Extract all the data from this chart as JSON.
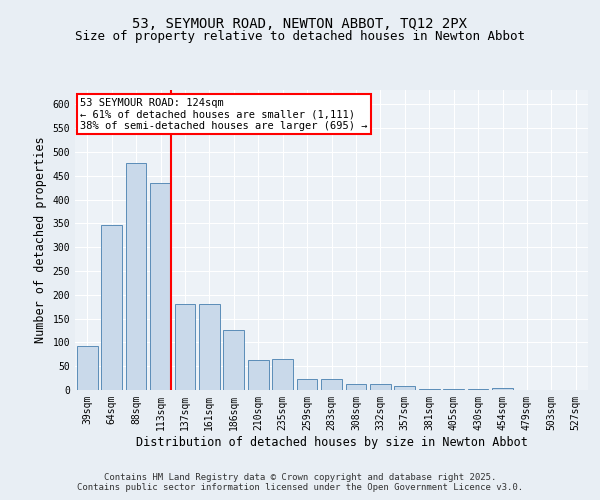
{
  "title_line1": "53, SEYMOUR ROAD, NEWTON ABBOT, TQ12 2PX",
  "title_line2": "Size of property relative to detached houses in Newton Abbot",
  "xlabel": "Distribution of detached houses by size in Newton Abbot",
  "ylabel": "Number of detached properties",
  "categories": [
    "39sqm",
    "64sqm",
    "88sqm",
    "113sqm",
    "137sqm",
    "161sqm",
    "186sqm",
    "210sqm",
    "235sqm",
    "259sqm",
    "283sqm",
    "308sqm",
    "332sqm",
    "357sqm",
    "381sqm",
    "405sqm",
    "430sqm",
    "454sqm",
    "479sqm",
    "503sqm",
    "527sqm"
  ],
  "values": [
    92,
    347,
    477,
    435,
    181,
    181,
    125,
    63,
    65,
    23,
    23,
    12,
    12,
    8,
    2,
    2,
    2,
    4,
    1,
    1,
    1
  ],
  "bar_color": "#c9d9ea",
  "bar_edge_color": "#5b8db8",
  "red_line_x": 3.42,
  "annotation_line1": "53 SEYMOUR ROAD: 124sqm",
  "annotation_line2": "← 61% of detached houses are smaller (1,111)",
  "annotation_line3": "38% of semi-detached houses are larger (695) →",
  "ylim": [
    0,
    630
  ],
  "yticks": [
    0,
    50,
    100,
    150,
    200,
    250,
    300,
    350,
    400,
    450,
    500,
    550,
    600
  ],
  "footer_text": "Contains HM Land Registry data © Crown copyright and database right 2025.\nContains public sector information licensed under the Open Government Licence v3.0.",
  "background_color": "#e8eef4",
  "plot_background_color": "#edf2f7",
  "grid_color": "white",
  "title_fontsize": 10,
  "subtitle_fontsize": 9,
  "tick_fontsize": 7,
  "label_fontsize": 8.5,
  "footer_fontsize": 6.5,
  "annot_fontsize": 7.5
}
